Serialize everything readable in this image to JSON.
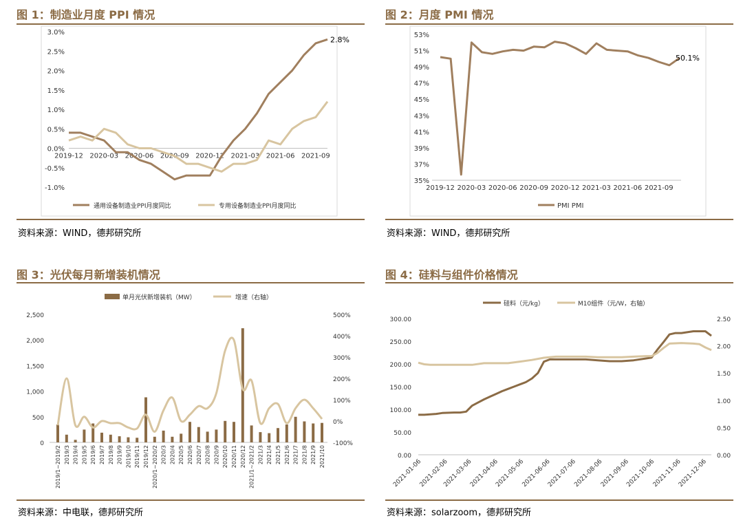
{
  "panels": [
    {
      "title": "图 1：制造业月度 PPI 情况",
      "source": "资料来源：WIND，德邦研究所"
    },
    {
      "title": "图 2：月度 PMI 情况",
      "source": "资料来源：WIND，德邦研究所"
    },
    {
      "title": "图 3：光伏每月新增装机情况",
      "source": "资料来源：中电联，德邦研究所"
    },
    {
      "title": "图 4：硅料与组件价格情况",
      "source": "资料来源：solarzoom，德邦研究所"
    }
  ],
  "chart_data": [
    {
      "type": "line",
      "title": "图 1：制造业月度 PPI 情况",
      "ylim": [
        -1.0,
        3.0
      ],
      "yticks": [
        "-1.0%",
        "-0.5%",
        "0.0%",
        "0.5%",
        "1.0%",
        "1.5%",
        "2.0%",
        "2.5%",
        "3.0%"
      ],
      "xtick_labels": [
        "2019-12",
        "2020-03",
        "2020-06",
        "2020-09",
        "2020-12",
        "2021-03",
        "2021-06",
        "2021-09"
      ],
      "series": [
        {
          "name": "通用设备制造业PPI月度同比",
          "color": "#a07f5e",
          "values": [
            0.4,
            0.4,
            0.3,
            0.2,
            -0.1,
            -0.1,
            -0.3,
            -0.4,
            -0.6,
            -0.8,
            -0.7,
            -0.7,
            -0.7,
            -0.2,
            0.2,
            0.5,
            0.9,
            1.4,
            1.7,
            2.0,
            2.4,
            2.7,
            2.8
          ]
        },
        {
          "name": "专用设备制造业PPI月度同比",
          "color": "#d8c5a0",
          "values": [
            0.2,
            0.3,
            0.2,
            0.5,
            0.4,
            0.1,
            0.0,
            0.0,
            -0.1,
            -0.2,
            -0.4,
            -0.4,
            -0.5,
            -0.6,
            -0.4,
            -0.4,
            -0.3,
            0.2,
            0.1,
            0.5,
            0.7,
            0.8,
            1.2
          ]
        }
      ],
      "end_label": "2.8%"
    },
    {
      "type": "line",
      "title": "图 2：月度 PMI 情况",
      "ylim": [
        35,
        53
      ],
      "yticks": [
        "35%",
        "37%",
        "39%",
        "41%",
        "43%",
        "45%",
        "47%",
        "49%",
        "51%",
        "53%"
      ],
      "xtick_labels": [
        "2019-12",
        "2020-03",
        "2020-06",
        "2020-09",
        "2020-12",
        "2021-03",
        "2021-06",
        "2021-09"
      ],
      "series": [
        {
          "name": "PMI PMI",
          "color": "#a07f5e",
          "values": [
            50.2,
            50.0,
            35.7,
            52.0,
            50.8,
            50.6,
            50.9,
            51.1,
            51.0,
            51.5,
            51.4,
            52.1,
            51.9,
            51.3,
            50.6,
            51.9,
            51.1,
            51.0,
            50.9,
            50.4,
            50.1,
            49.6,
            49.2,
            50.1
          ]
        }
      ],
      "end_label": "50.1%"
    },
    {
      "type": "bar",
      "title": "图 3：光伏每月新增装机情况",
      "categories": [
        "2019/1~2019/2",
        "2019/3",
        "2019/4",
        "2019/5",
        "2019/6",
        "2019/7",
        "2019/8",
        "2019/9",
        "2019/10",
        "2019/11",
        "2019/12",
        "2020/1~2020/2",
        "2020/3",
        "2020/4",
        "2020/5",
        "2020/6",
        "2020/7",
        "2020/8",
        "2020/9",
        "2020/10",
        "2020/11",
        "2020/12",
        "2021/1~2021/2",
        "2021/3",
        "2021/4",
        "2021/5",
        "2021/6",
        "2021/7",
        "2021/8",
        "2021/9",
        "2021/10"
      ],
      "ylim_left": [
        0,
        2500
      ],
      "yticks_left": [
        "0",
        "500",
        "1,000",
        "1,500",
        "2,000",
        "2,500"
      ],
      "ylim_right": [
        -100,
        500
      ],
      "yticks_right": [
        "-100%",
        "0%",
        "100%",
        "200%",
        "300%",
        "400%",
        "500%"
      ],
      "series": [
        {
          "name": "单月光伏新增装机（MW）",
          "type": "bar",
          "axis": "left",
          "color": "#8b6b45",
          "values": [
            350,
            150,
            50,
            250,
            370,
            190,
            150,
            120,
            100,
            90,
            880,
            110,
            230,
            110,
            170,
            400,
            300,
            210,
            250,
            420,
            400,
            2230,
            330,
            200,
            180,
            280,
            350,
            500,
            410,
            370,
            380
          ]
        },
        {
          "name": "增速（右轴）",
          "type": "line",
          "axis": "right",
          "color": "#d8c5a0",
          "values": [
            -20,
            200,
            -20,
            20,
            -30,
            0,
            -10,
            -10,
            -30,
            -35,
            30,
            -50,
            50,
            110,
            0,
            30,
            70,
            60,
            130,
            330,
            380,
            150,
            190,
            -10,
            60,
            80,
            -10,
            60,
            100,
            60,
            10
          ]
        }
      ]
    },
    {
      "type": "line",
      "title": "图 4：硅料与组件价格情况",
      "ylim_left": [
        0,
        300
      ],
      "yticks_left": [
        "0.00",
        "50.00",
        "100.00",
        "150.00",
        "200.00",
        "250.00",
        "300.00"
      ],
      "ylim_right": [
        0,
        2.5
      ],
      "yticks_right": [
        "0.00",
        "0.50",
        "1.00",
        "1.50",
        "2.00",
        "2.50"
      ],
      "xtick_labels": [
        "2021-01-06",
        "2021-02-06",
        "2021-03-06",
        "2021-04-06",
        "2021-05-06",
        "2021-06-06",
        "2021-07-06",
        "2021-08-06",
        "2021-09-06",
        "2021-10-06",
        "2021-11-06",
        "2021-12-06"
      ],
      "series": [
        {
          "name": "硅料（元/kg）",
          "axis": "left",
          "color": "#8b6b45",
          "x": [
            "2021-01-06",
            "2021-01-13",
            "2021-01-20",
            "2021-01-27",
            "2021-02-03",
            "2021-02-17",
            "2021-02-24",
            "2021-03-03",
            "2021-03-10",
            "2021-03-17",
            "2021-03-24",
            "2021-03-31",
            "2021-04-07",
            "2021-04-14",
            "2021-04-21",
            "2021-04-28",
            "2021-05-05",
            "2021-05-12",
            "2021-05-19",
            "2021-05-26",
            "2021-06-02",
            "2021-06-09",
            "2021-06-23",
            "2021-07-07",
            "2021-07-21",
            "2021-08-04",
            "2021-08-18",
            "2021-09-01",
            "2021-09-15",
            "2021-09-29",
            "2021-10-06",
            "2021-10-13",
            "2021-10-20",
            "2021-10-27",
            "2021-11-03",
            "2021-11-10",
            "2021-11-24",
            "2021-12-08",
            "2021-12-15"
          ],
          "values": [
            88,
            88,
            89,
            90,
            92,
            93,
            93,
            95,
            108,
            115,
            122,
            128,
            134,
            140,
            145,
            150,
            155,
            160,
            168,
            180,
            205,
            210,
            210,
            210,
            210,
            208,
            206,
            206,
            208,
            212,
            214,
            232,
            248,
            265,
            268,
            268,
            272,
            272,
            262
          ]
        },
        {
          "name": "M10组件（元/W，右轴）",
          "axis": "right",
          "color": "#d8c5a0",
          "x": [
            "2021-01-06",
            "2021-01-13",
            "2021-01-20",
            "2021-02-03",
            "2021-02-24",
            "2021-03-10",
            "2021-03-24",
            "2021-04-07",
            "2021-04-21",
            "2021-05-05",
            "2021-05-19",
            "2021-06-02",
            "2021-06-16",
            "2021-07-07",
            "2021-07-21",
            "2021-08-04",
            "2021-08-18",
            "2021-09-01",
            "2021-09-15",
            "2021-09-29",
            "2021-10-06",
            "2021-10-13",
            "2021-10-20",
            "2021-10-27",
            "2021-11-10",
            "2021-11-24",
            "2021-12-01",
            "2021-12-08",
            "2021-12-15"
          ],
          "values": [
            1.69,
            1.66,
            1.65,
            1.65,
            1.65,
            1.65,
            1.68,
            1.68,
            1.68,
            1.71,
            1.74,
            1.78,
            1.8,
            1.8,
            1.8,
            1.79,
            1.79,
            1.79,
            1.8,
            1.81,
            1.81,
            1.87,
            1.96,
            2.04,
            2.05,
            2.04,
            2.03,
            1.97,
            1.92
          ]
        }
      ]
    }
  ]
}
